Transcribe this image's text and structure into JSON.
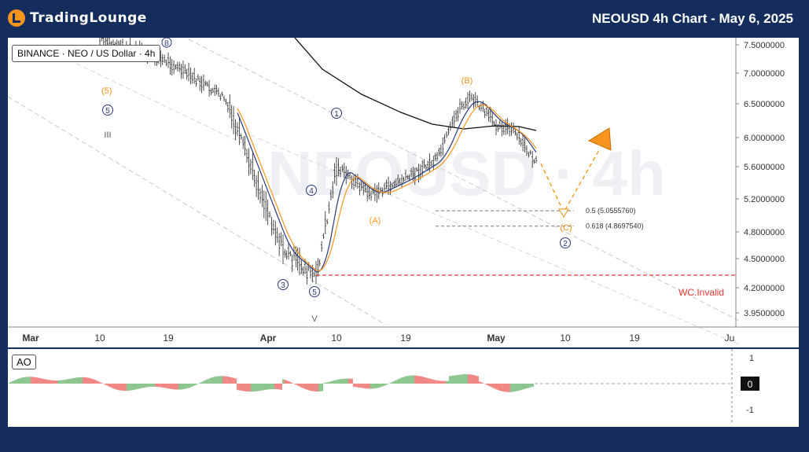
{
  "header": {
    "brand": "TradingLounge",
    "title": "NEOUSD 4h Chart - May 6, 2025"
  },
  "chart": {
    "symbol_label": "BINANCE · NEO / US Dollar · 4h",
    "watermark": "NEOUSD · 4h",
    "price_ticks": [
      "7.5000000",
      "7.0000000",
      "6.5000000",
      "6.0000000",
      "5.6000000",
      "5.2000000",
      "4.8000000",
      "4.5000000",
      "4.2000000",
      "3.9500000"
    ],
    "time_ticks": [
      "Mar",
      "10",
      "19",
      "Apr",
      "10",
      "19",
      "May",
      "10",
      "19",
      "Ju"
    ],
    "wave_labels": {
      "w5_top": "(5)",
      "w5_circ": "5",
      "w_III": "III",
      "w_B_circ": "B",
      "w1": "1",
      "w3": "3",
      "w4": "4",
      "w5_low": "5",
      "w_V": "V",
      "wA": "(A)",
      "wB": "(B)",
      "wC": "(C)",
      "w2": "2"
    },
    "fib": [
      {
        "label": "0.5 (5.0555760)",
        "price": 5.055576
      },
      {
        "label": "0.618 (4.8697540)",
        "price": 4.869754
      }
    ],
    "invalid_label": "WC.Invalid",
    "invalid_price": 4.33,
    "colors": {
      "orange": "#f7941d",
      "navy": "#2b3a7a",
      "red": "#e53935",
      "green": "#43a047",
      "black": "#111111"
    }
  },
  "ao": {
    "label": "AO",
    "ticks": [
      "1",
      "0",
      "-1"
    ]
  },
  "chart_data": {
    "type": "line",
    "symbol": "NEOUSD",
    "x": [
      "Mar 10",
      "Mar 19",
      "Mar 27",
      "Apr 3",
      "Apr 8",
      "Apr 10",
      "Apr 15",
      "Apr 19",
      "Apr 23",
      "Apr 25",
      "Apr 28",
      "May 1",
      "May 3",
      "May 6"
    ],
    "series": [
      {
        "values": [
          7.6,
          7.2,
          6.6,
          4.6,
          4.3,
          5.6,
          5.25,
          5.45,
          5.7,
          6.45,
          6.6,
          6.2,
          6.1,
          5.65
        ]
      }
    ],
    "ylim": [
      3.85,
      7.6
    ]
  }
}
